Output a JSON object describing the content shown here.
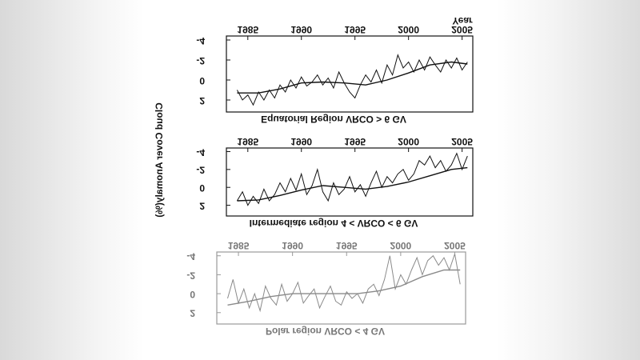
{
  "chart_data": [
    {
      "type": "line",
      "title": "Equatorial Region VRCO > 6 GV",
      "xlabel": "Year",
      "ylabel": "Cloud Cover Anomaly(%)",
      "xlim": [
        1983,
        2006
      ],
      "ylim": [
        -4.4,
        3.2
      ],
      "xticks": [
        1985,
        1990,
        1995,
        2000,
        2005
      ],
      "yticks": [
        -4,
        -2,
        0,
        2
      ],
      "series": [
        {
          "color": "#111111",
          "x": [
            1984,
            1984.5,
            1985,
            1985.5,
            1986,
            1986.5,
            1987,
            1987.5,
            1988,
            1988.5,
            1989,
            1989.5,
            1990,
            1990.5,
            1991,
            1991.5,
            1992,
            1992.5,
            1993,
            1993.5,
            1994,
            1994.5,
            1995,
            1995.5,
            1996,
            1996.5,
            1997,
            1997.5,
            1998,
            1998.5,
            1999,
            1999.5,
            2000,
            2000.5,
            2001,
            2001.5,
            2002,
            2002.5,
            2003,
            2003.5,
            2004,
            2004.5,
            2005,
            2005.5
          ],
          "values": [
            1.0,
            2.0,
            1.5,
            2.5,
            1.2,
            2.0,
            1.0,
            1.8,
            0.5,
            1.2,
            0.0,
            0.8,
            -0.3,
            0.6,
            0.2,
            -0.5,
            0.5,
            -0.2,
            0.8,
            -0.8,
            0.3,
            1.2,
            1.8,
            0.5,
            -0.5,
            0.2,
            -1.0,
            0.3,
            -1.5,
            -0.5,
            -2.5,
            -1.2,
            -1.8,
            -0.8,
            -2.0,
            -1.0,
            -2.3,
            -1.5,
            -0.8,
            -2.0,
            -1.2,
            -2.2,
            -1.0,
            -1.8
          ]
        },
        {
          "color": "#111111",
          "x": [
            1984,
            1986,
            1988,
            1990,
            1992,
            1994,
            1996,
            1998,
            2000,
            2002,
            2004,
            2005.5
          ],
          "values": [
            1.3,
            1.3,
            0.9,
            0.3,
            0.2,
            0.3,
            0.5,
            0.0,
            -0.7,
            -1.5,
            -1.8,
            -1.6
          ]
        }
      ]
    },
    {
      "type": "line",
      "title": "Intermediate region 4 < VRCO < 6 GV",
      "xlim": [
        1983,
        2006
      ],
      "ylim": [
        -4.4,
        3.2
      ],
      "xticks": [
        1985,
        1990,
        1995,
        2000,
        2005
      ],
      "yticks": [
        -4,
        -2,
        0,
        2
      ],
      "series": [
        {
          "color": "#111111",
          "x": [
            1984,
            1984.5,
            1985,
            1985.5,
            1986,
            1986.5,
            1987,
            1987.5,
            1988,
            1988.5,
            1989,
            1989.5,
            1990,
            1990.5,
            1991,
            1991.5,
            1992,
            1992.5,
            1993,
            1993.5,
            1994,
            1994.5,
            1995,
            1995.5,
            1996,
            1996.5,
            1997,
            1997.5,
            1998,
            1998.5,
            1999,
            1999.5,
            2000,
            2000.5,
            2001,
            2001.5,
            2002,
            2002.5,
            2003,
            2003.5,
            2004,
            2004.5,
            2005,
            2005.5
          ],
          "values": [
            1.5,
            0.5,
            2.0,
            1.0,
            1.8,
            0.2,
            1.5,
            0.8,
            -0.5,
            0.5,
            -1.0,
            0.3,
            -1.5,
            0.8,
            -0.2,
            -2.0,
            0.5,
            1.5,
            -0.5,
            0.8,
            0.2,
            -1.2,
            0.5,
            -0.3,
            1.0,
            -0.5,
            -1.8,
            0.0,
            -1.2,
            -0.5,
            -1.5,
            -2.0,
            -0.8,
            -1.5,
            -3.0,
            -2.5,
            -3.5,
            -2.2,
            -3.0,
            -1.8,
            -2.5,
            -3.8,
            -2.0,
            -3.5
          ]
        },
        {
          "color": "#111111",
          "x": [
            1984,
            1986,
            1988,
            1990,
            1992,
            1994,
            1996,
            1998,
            2000,
            2002,
            2004,
            2005.5
          ],
          "values": [
            1.5,
            1.4,
            0.9,
            0.3,
            -0.2,
            0.0,
            0.2,
            -0.1,
            -0.6,
            -1.3,
            -2.0,
            -2.2
          ]
        }
      ]
    },
    {
      "type": "line",
      "title": "Polar region VRCO < 4 GV",
      "xlim": [
        1983,
        2006
      ],
      "ylim": [
        -4.4,
        3.2
      ],
      "xticks": [
        1985,
        1990,
        1995,
        2000,
        2005
      ],
      "yticks": [
        -4,
        -2,
        0,
        2
      ],
      "series": [
        {
          "color": "#8a8a8a",
          "x": [
            1984,
            1984.5,
            1985,
            1985.5,
            1986,
            1986.5,
            1987,
            1987.5,
            1988,
            1988.5,
            1989,
            1989.5,
            1990,
            1990.5,
            1991,
            1991.5,
            1992,
            1992.5,
            1993,
            1993.5,
            1994,
            1994.5,
            1995,
            1995.5,
            1996,
            1996.5,
            1997,
            1997.5,
            1998,
            1998.5,
            1999,
            1999.5,
            2000,
            2000.5,
            2001,
            2001.5,
            2002,
            2002.5,
            2003,
            2003.5,
            2004,
            2004.5,
            2005,
            2005.5
          ],
          "values": [
            0.5,
            -1.5,
            1.0,
            -0.5,
            1.5,
            0.0,
            1.8,
            -0.8,
            0.5,
            1.2,
            -1.0,
            0.8,
            0.0,
            -1.2,
            1.0,
            0.2,
            -0.5,
            1.5,
            0.3,
            -0.8,
            0.8,
            1.2,
            -0.2,
            0.5,
            0.0,
            1.0,
            -0.5,
            -1.0,
            0.2,
            -1.5,
            -4.0,
            -0.5,
            -2.0,
            -1.0,
            -2.5,
            -3.8,
            -2.0,
            -3.5,
            -4.0,
            -3.0,
            -3.8,
            -2.5,
            -4.2,
            -1.0
          ]
        },
        {
          "color": "#8a8a8a",
          "x": [
            1984,
            1986,
            1988,
            1990,
            1992,
            1994,
            1996,
            1998,
            2000,
            2002,
            2004,
            2005.5
          ],
          "values": [
            1.2,
            0.8,
            0.3,
            0.0,
            0.0,
            0.0,
            0.0,
            -0.3,
            -0.8,
            -1.8,
            -2.5,
            -2.5
          ]
        }
      ]
    }
  ]
}
